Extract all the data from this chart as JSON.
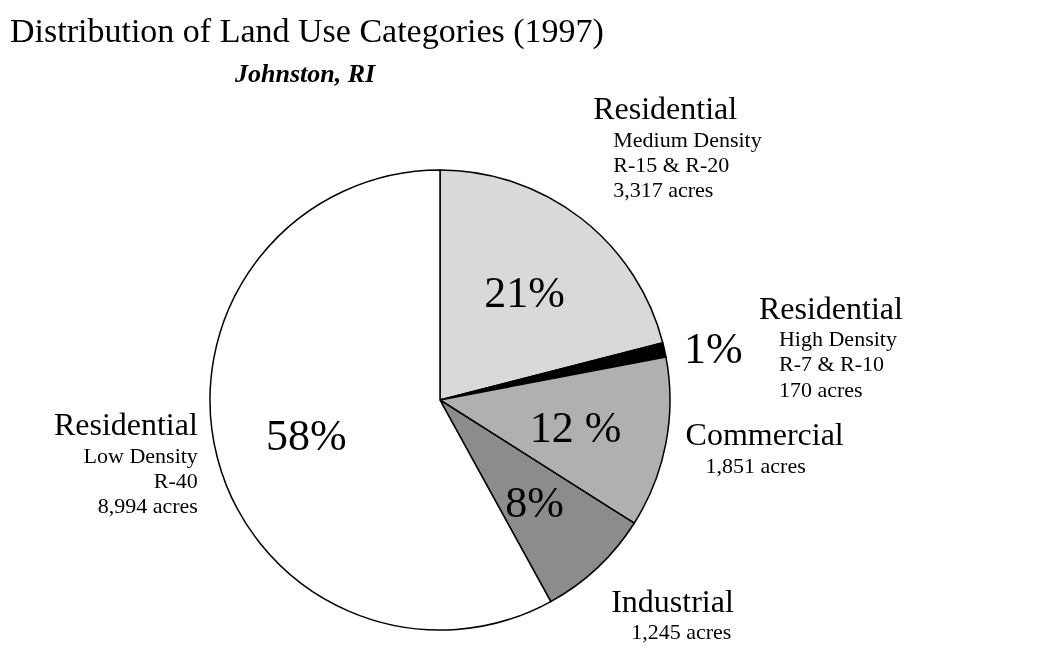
{
  "chart_data": {
    "type": "pie",
    "title": "Distribution of Land Use Categories (1997)",
    "subtitle": "Johnston, RI",
    "categories": [
      "Residential\nMedium Density\nR-15 & R-20\n3,317 acres",
      "Residential\nHigh Density\nR-7 & R-10\n170 acres",
      "Commercial\n1,851 acres",
      "Industrial\n1,245 acres",
      "Residential\nLow Density\nR-40\n8,994 acres"
    ],
    "values": [
      21,
      1,
      12,
      8,
      58
    ],
    "value_labels": [
      "21%",
      "1%",
      "12 %",
      "8%",
      "58%"
    ],
    "colors": [
      "#d9d9d9",
      "#000000",
      "#b0b0b0",
      "#8c8c8c",
      "#ffffff"
    ]
  }
}
